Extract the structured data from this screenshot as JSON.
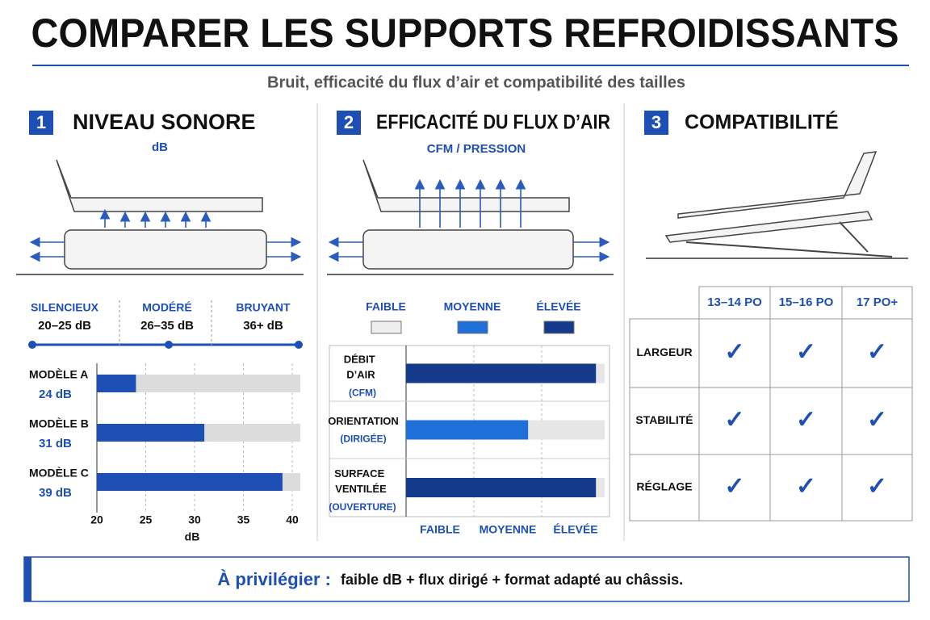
{
  "header": {
    "title": "COMPARER LES SUPPORTS REFROIDISSANTS",
    "subtitle": "Bruit, efficacité du flux d’air et compatibilité des tailles"
  },
  "noise": {
    "number": "1",
    "title": "NIVEAU SONORE",
    "unit": "dB",
    "scale": [
      {
        "name": "SILENCIEUX",
        "range": "20–25 dB"
      },
      {
        "name": "MODÉRÉ",
        "range": "26–35 dB"
      },
      {
        "name": "BRUYANT",
        "range": "36+ dB"
      }
    ],
    "chart_data": {
      "type": "bar",
      "orientation": "horizontal",
      "categories": [
        "MODÈLE A",
        "MODÈLE B",
        "MODÈLE C"
      ],
      "values": [
        24,
        31,
        39
      ],
      "value_labels": [
        "24 dB",
        "31 dB",
        "39 dB"
      ],
      "color": "#1d4fb4",
      "track_color": "#dcdcdc",
      "xlim": [
        20,
        40
      ],
      "xticks": [
        20,
        25,
        30,
        35,
        40
      ],
      "xlabel": "dB",
      "grid": true
    }
  },
  "airflow": {
    "number": "2",
    "title": "EFFICACITÉ DU FLUX D’AIR",
    "unit": "CFM / PRESSION",
    "levels": [
      {
        "name": "FAIBLE",
        "color": "#eeeeee"
      },
      {
        "name": "MOYENNE",
        "color": "#1f6fd8"
      },
      {
        "name": "ÉLEVÉE",
        "color": "#143a8c"
      }
    ],
    "rows": [
      {
        "label": "DÉBIT D’AIR",
        "sub": "(CFM)",
        "level": "ÉLEVÉE"
      },
      {
        "label": "ORIENTATION",
        "sub": "(DIRIGÉE)",
        "level": "MOYENNE"
      },
      {
        "label": "SURFACE VENTILÉE",
        "sub": "(OUVERTURE)",
        "level": "ÉLEVÉE"
      }
    ]
  },
  "compat": {
    "number": "3",
    "title": "COMPATIBILITÉ",
    "columns": [
      "13–14 PO",
      "15–16 PO",
      "17 PO+"
    ],
    "rows": [
      {
        "label": "LARGEUR",
        "cells": [
          "✓",
          "✓",
          "✓"
        ]
      },
      {
        "label": "STABILITÉ",
        "cells": [
          "✓",
          "✓",
          "✓"
        ]
      },
      {
        "label": "RÉGLAGE",
        "cells": [
          "✓",
          "✓",
          "✓"
        ]
      }
    ]
  },
  "footer": {
    "lead": "À privilégier :",
    "text": "faible dB + flux dirigé + format adapté au châssis."
  }
}
